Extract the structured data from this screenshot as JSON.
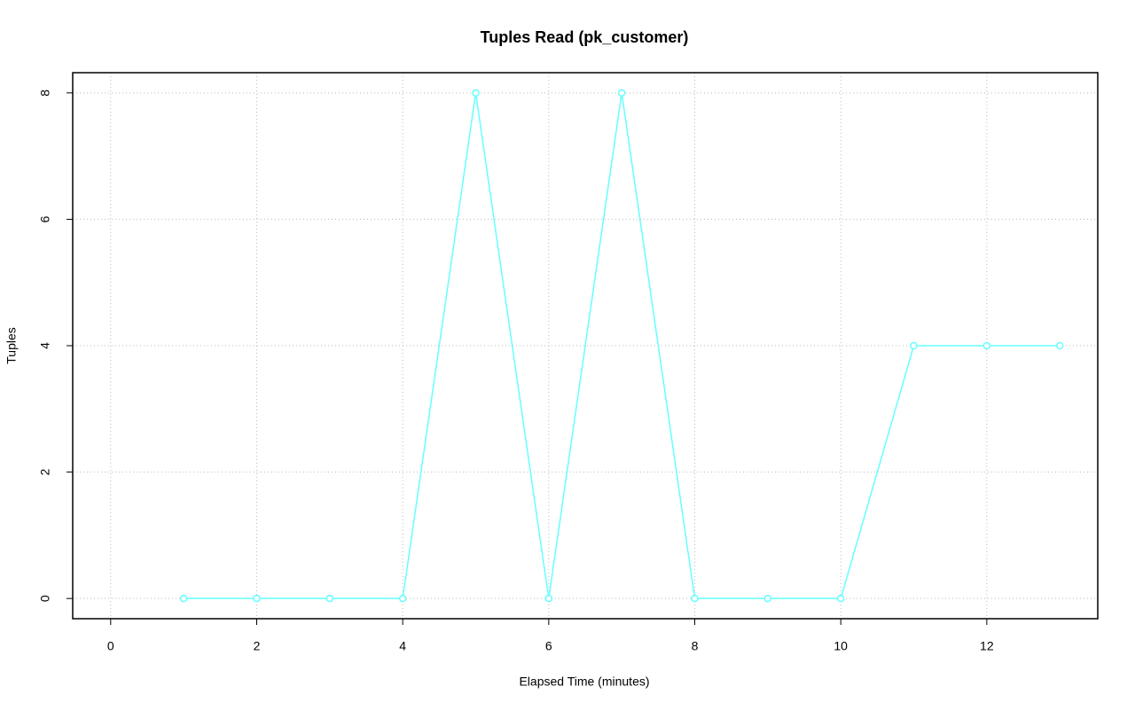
{
  "chart_data": {
    "type": "line",
    "title": "Tuples Read (pk_customer)",
    "x_label": "Elapsed Time (minutes)",
    "y_label": "Tuples",
    "x": [
      1,
      2,
      3,
      4,
      5,
      6,
      7,
      8,
      9,
      10,
      11,
      12,
      13
    ],
    "series": [
      {
        "color": "#66ffff",
        "values": [
          0,
          0,
          0,
          0,
          8,
          0,
          8,
          0,
          0,
          0,
          4,
          4,
          4
        ]
      }
    ],
    "xlim": [
      -0.52,
      13.52
    ],
    "xticks": [
      0,
      2,
      4,
      6,
      8,
      10,
      12
    ],
    "ylim": [
      -0.32,
      8.32
    ],
    "yticks": [
      0,
      2,
      4,
      6,
      8
    ],
    "grid": true
  }
}
